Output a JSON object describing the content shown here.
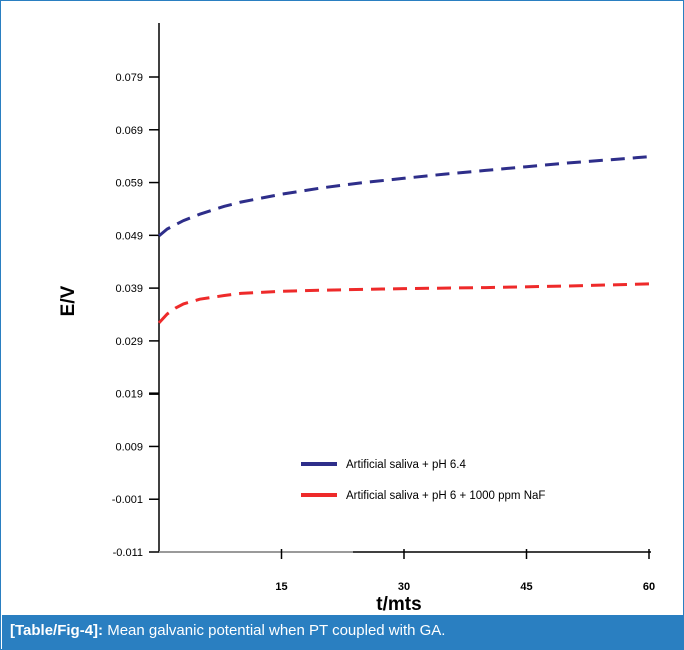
{
  "caption": {
    "label": "[Table/Fig-4]:",
    "text": "Mean galvanic potential when PT coupled with GA."
  },
  "colors": {
    "accent": "#2a7fc1",
    "series1": "#2e2e8a",
    "series2": "#ee2a2a",
    "axis": "#000000"
  },
  "chart_data": {
    "type": "line",
    "title": "",
    "xlabel": "t/mts",
    "ylabel": "E/V",
    "xlim": [
      0,
      60
    ],
    "ylim": [
      -0.011,
      0.089
    ],
    "xticks": [
      15,
      30,
      45,
      60
    ],
    "xtick_labels": [
      "15",
      "30",
      "45",
      "60"
    ],
    "yticks": [
      -0.011,
      -0.001,
      0.009,
      0.019,
      0.029,
      0.039,
      0.049,
      0.059,
      0.069,
      0.079
    ],
    "ytick_labels": [
      "-0.011",
      "-0.001",
      "0.009",
      "0.019",
      "0.029",
      "0.039",
      "0.049",
      "0.059",
      "0.069",
      "0.079"
    ],
    "grid": false,
    "legend_position": "bottom-right",
    "series": [
      {
        "name": "Artificial saliva + pH 6.4",
        "color": "#2e2e8a",
        "style": "dashed",
        "x": [
          0,
          1,
          3,
          5,
          8,
          10,
          15,
          20,
          25,
          30,
          35,
          40,
          45,
          50,
          55,
          60
        ],
        "y": [
          0.0489,
          0.0502,
          0.0518,
          0.053,
          0.0545,
          0.0553,
          0.0568,
          0.058,
          0.059,
          0.0598,
          0.0606,
          0.0613,
          0.062,
          0.0627,
          0.0633,
          0.0639
        ]
      },
      {
        "name": "Artificial saliva + pH 6 + 1000 ppm NaF",
        "color": "#ee2a2a",
        "style": "dashed",
        "x": [
          0,
          1,
          2,
          3,
          5,
          8,
          10,
          15,
          20,
          30,
          40,
          50,
          60
        ],
        "y": [
          0.0324,
          0.0341,
          0.0352,
          0.036,
          0.0369,
          0.0376,
          0.038,
          0.0384,
          0.0386,
          0.0389,
          0.0391,
          0.0394,
          0.0398
        ]
      }
    ]
  }
}
